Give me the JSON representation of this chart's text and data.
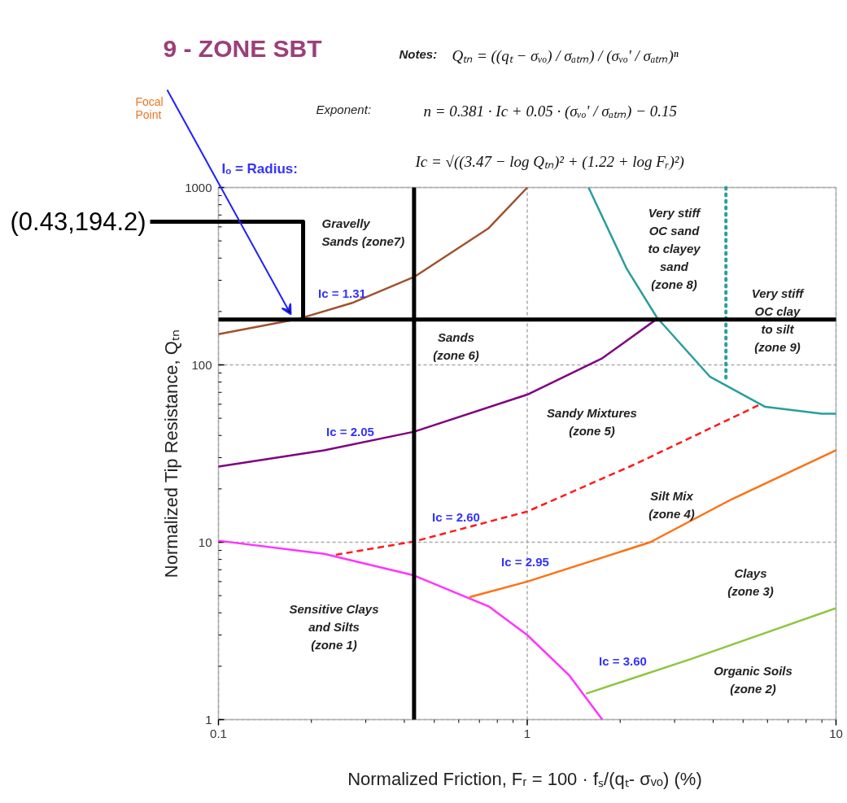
{
  "chart_data": {
    "type": "line",
    "title": "9 - ZONE SBT",
    "xlabel": "Normalized Friction, Fᵣ = 100 · fₛ/(qₜ- σᵥₒ)  (%)",
    "ylabel": "Normalized Tip Resistance, Qₜₙ",
    "log": "xy",
    "xlim": [
      0.1,
      10
    ],
    "ylim": [
      1,
      1000
    ],
    "xticks": [
      0.1,
      1,
      10
    ],
    "yticks": [
      1,
      10,
      100,
      1000
    ],
    "grid": true,
    "series": [
      {
        "color": "#a0522d",
        "line_style": "solid",
        "x": [
          0.1,
          0.18,
          0.27,
          0.43,
          0.75,
          1
        ],
        "values": [
          149,
          181,
          223,
          313,
          590,
          1000
        ]
      },
      {
        "color": "#800080",
        "line_style": "solid",
        "x": [
          0.1,
          0.22,
          0.43,
          1,
          1.75,
          2.6
        ],
        "values": [
          26.7,
          33,
          42,
          68,
          109,
          179
        ]
      },
      {
        "color": "#ff1a1a",
        "line_style": "dashed",
        "x": [
          0.24,
          0.43,
          1,
          2.23,
          5.7
        ],
        "values": [
          8.5,
          10.1,
          14.9,
          27.5,
          60
        ]
      },
      {
        "color": "#ff33ff",
        "line_style": "solid",
        "x": [
          0.1,
          0.22,
          0.43,
          0.75,
          1,
          1.37,
          1.75
        ],
        "values": [
          10.2,
          8.6,
          6.5,
          4.35,
          3.0,
          1.77,
          1
        ]
      },
      {
        "color": "#ff7010",
        "line_style": "solid",
        "x": [
          0.65,
          1,
          2.5,
          4.6,
          10
        ],
        "values": [
          4.9,
          6.0,
          10,
          17.5,
          33
        ]
      },
      {
        "color": "#8cc63f",
        "line_style": "solid",
        "x": [
          1.55,
          3.4,
          10
        ],
        "values": [
          1.4,
          2.2,
          4.25
        ]
      },
      {
        "color": "#2a9d9d",
        "line_style": "solid",
        "x": [
          1.58,
          2.1,
          2.63,
          3.9,
          5.9,
          9.0,
          10
        ],
        "values": [
          1000,
          348,
          185,
          86,
          58,
          53,
          53
        ]
      },
      {
        "color": "#2a9d9d",
        "line_style": "dotted",
        "x": [
          4.4,
          4.4
        ],
        "values": [
          1000,
          84
        ]
      }
    ],
    "ref_lines": [
      {
        "axis": "x",
        "value": 0.43,
        "color": "#000000"
      },
      {
        "axis": "y",
        "value": 180,
        "color": "#000000"
      }
    ],
    "annotations": [
      "Notes:",
      "Qₜₙ = ((qₜ − σᵥₒ) / σₐₜₘ) / (σᵥₒ' / σₐₜₘ)ⁿ",
      "Exponent:",
      "n = 0.381 · Ic + 0.05 · (σᵥₒ' / σₐₜₘ) − 0.15",
      "Ic = √((3.47 − log Qₜₙ)² + (1.22 + log Fᵣ)²)",
      "Focal Point",
      "Iₒ = Radius:",
      {
        "text": "(0.43,194.2)",
        "x": 0.188,
        "y": 180
      },
      "Gravelly\nSands  (zone7)",
      "Sands\n(zone 6)",
      "Very stiff\nOC sand\nto clayey\nsand\n(zone 8)",
      "Very stiff\nOC clay\nto silt\n(zone 9)",
      "Sandy Mixtures\n(zone 5)",
      "Silt Mix\n(zone 4)",
      "Clays\n(zone 3)",
      "Sensitive Clays\nand Silts\n(zone 1)",
      "Organic Soils\n(zone 2)",
      "Ic = 1.31",
      "Ic = 2.05",
      "Ic = 2.60",
      "Ic = 2.95",
      "Ic = 3.60"
    ]
  }
}
